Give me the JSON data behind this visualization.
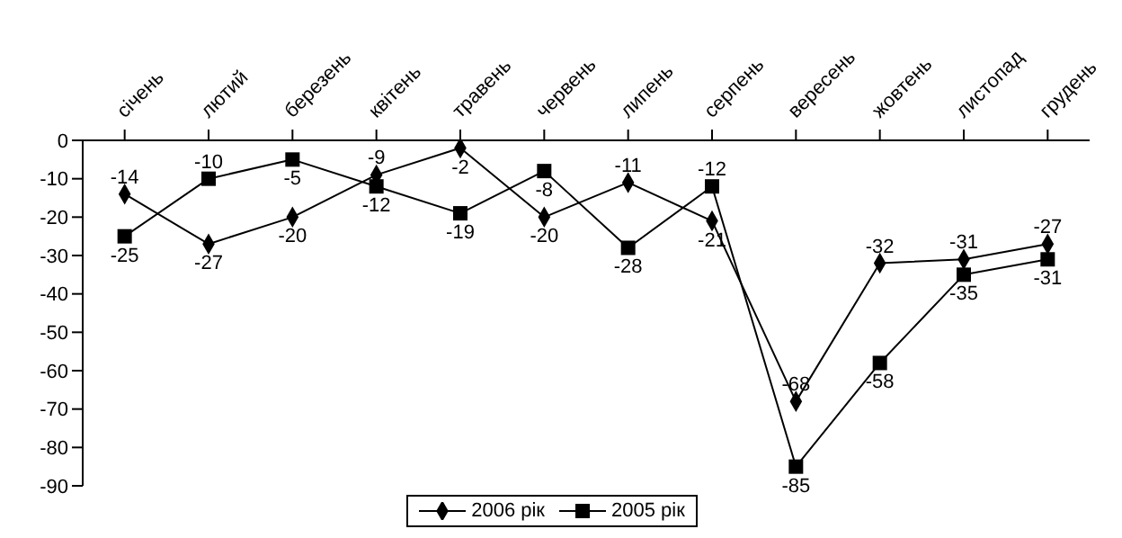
{
  "chart_data": {
    "type": "line",
    "categories": [
      "січень",
      "лютий",
      "березень",
      "квітень",
      "травень",
      "червень",
      "липень",
      "серпень",
      "вересень",
      "жовтень",
      "листопад",
      "грудень"
    ],
    "series": [
      {
        "name": "2006 рік",
        "color": "#000000",
        "marker": "diamond",
        "values": [
          -14,
          -27,
          -20,
          -9,
          -2,
          -20,
          -11,
          -21,
          -68,
          -32,
          -31,
          -27
        ],
        "value_labels": [
          "-14",
          "-27",
          "-20",
          "-9",
          "-2",
          "-20",
          "-11",
          "-21",
          "-68",
          "-32",
          "-31",
          "-27"
        ]
      },
      {
        "name": "2005 рік",
        "color": "#000000",
        "marker": "square",
        "values": [
          -25,
          -10,
          -5,
          -12,
          -19,
          -8,
          -28,
          -12,
          -85,
          -58,
          -35,
          -31
        ],
        "value_labels": [
          "-25",
          "-10",
          "-5",
          "-12",
          "-19",
          "-8",
          "-28",
          "-12",
          "-85",
          "-58",
          "-35",
          "-31"
        ]
      }
    ],
    "ylim": [
      -90,
      0
    ],
    "yticks": [
      -90,
      -80,
      -70,
      -60,
      -50,
      -40,
      -30,
      -20,
      -10,
      0
    ],
    "grid": false,
    "legend": "bottom"
  }
}
